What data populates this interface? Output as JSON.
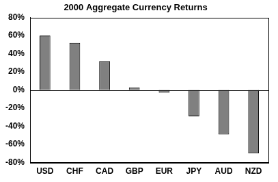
{
  "chart_data": {
    "type": "bar",
    "title": "2000 Aggregate Currency Returns",
    "categories": [
      "USD",
      "CHF",
      "CAD",
      "GBP",
      "EUR",
      "JPY",
      "AUD",
      "NZD"
    ],
    "values": [
      60,
      52,
      32,
      3,
      -3,
      -29,
      -49,
      -70
    ],
    "color": "#808080",
    "ylim": [
      -80,
      80
    ],
    "yticks": [
      {
        "value": -80,
        "label": "-80%"
      },
      {
        "value": -60,
        "label": "-60%"
      },
      {
        "value": -40,
        "label": "-40%"
      },
      {
        "value": -20,
        "label": "-20%"
      },
      {
        "value": 0,
        "label": "0%"
      },
      {
        "value": 20,
        "label": "20%"
      },
      {
        "value": 40,
        "label": "40%"
      },
      {
        "value": 60,
        "label": "60%"
      },
      {
        "value": 80,
        "label": "80%"
      }
    ],
    "grid": false
  }
}
